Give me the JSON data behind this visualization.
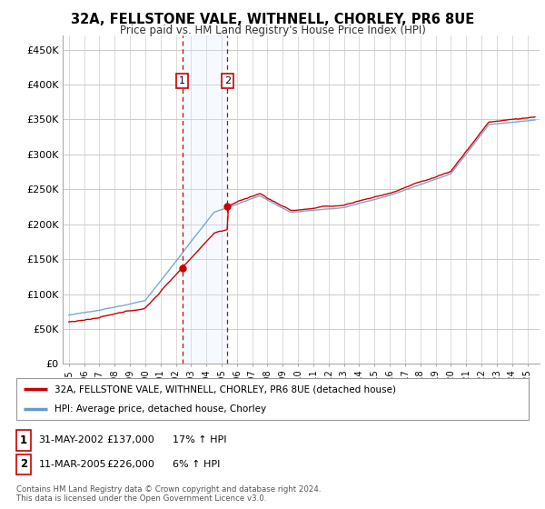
{
  "title": "32A, FELLSTONE VALE, WITHNELL, CHORLEY, PR6 8UE",
  "subtitle": "Price paid vs. HM Land Registry's House Price Index (HPI)",
  "ylim": [
    0,
    470000
  ],
  "yticks": [
    0,
    50000,
    100000,
    150000,
    200000,
    250000,
    300000,
    350000,
    400000,
    450000
  ],
  "ytick_labels": [
    "£0",
    "£50K",
    "£100K",
    "£150K",
    "£200K",
    "£250K",
    "£300K",
    "£350K",
    "£400K",
    "£450K"
  ],
  "sale1_date_num": 2002.42,
  "sale1_price": 137000,
  "sale2_date_num": 2005.37,
  "sale2_price": 226000,
  "legend_label_red": "32A, FELLSTONE VALE, WITHNELL, CHORLEY, PR6 8UE (detached house)",
  "legend_label_blue": "HPI: Average price, detached house, Chorley",
  "table_row1": [
    "1",
    "31-MAY-2002",
    "£137,000",
    "17% ↑ HPI"
  ],
  "table_row2": [
    "2",
    "11-MAR-2005",
    "£226,000",
    "6% ↑ HPI"
  ],
  "footnote": "Contains HM Land Registry data © Crown copyright and database right 2024.\nThis data is licensed under the Open Government Licence v3.0.",
  "red_color": "#cc0000",
  "blue_color": "#6699cc",
  "shade_color": "#ddeeff",
  "vline_color": "#cc0000",
  "background_color": "#ffffff",
  "grid_color": "#cccccc"
}
